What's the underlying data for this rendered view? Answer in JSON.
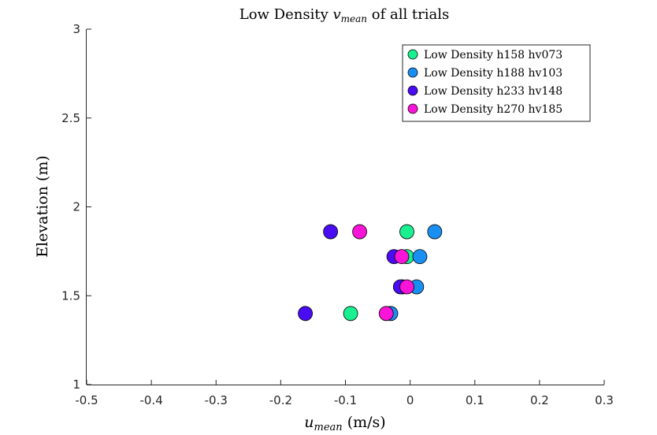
{
  "chart_data": {
    "type": "scatter",
    "title": {
      "prefix": "Low Density ",
      "var_main": "v",
      "var_sub": "mean",
      "suffix": " of all trials"
    },
    "xlabel": {
      "var_main": "u",
      "var_sub": "mean",
      "suffix": " (m/s)"
    },
    "ylabel": "Elevation (m)",
    "xlim": [
      -0.5,
      0.3
    ],
    "ylim": [
      1,
      3
    ],
    "xticks": [
      -0.5,
      -0.4,
      -0.3,
      -0.2,
      -0.1,
      0,
      0.1,
      0.2,
      0.3
    ],
    "xtick_labels": [
      "-0.5",
      "-0.4",
      "-0.3",
      "-0.2",
      "-0.1",
      "0",
      "0.1",
      "0.2",
      "0.3"
    ],
    "yticks": [
      1,
      1.5,
      2,
      2.5,
      3
    ],
    "ytick_labels": [
      "1",
      "1.5",
      "2",
      "2.5",
      "3"
    ],
    "grid": false,
    "legend_position": "top-right",
    "series": [
      {
        "name": "Low Density h158 hv073",
        "color": "#19f08f",
        "points": [
          {
            "x": -0.092,
            "y": 1.4
          },
          {
            "x": -0.012,
            "y": 1.55
          },
          {
            "x": -0.005,
            "y": 1.72
          },
          {
            "x": -0.005,
            "y": 1.86
          }
        ]
      },
      {
        "name": "Low Density h188 hv103",
        "color": "#1a8ff2",
        "points": [
          {
            "x": -0.03,
            "y": 1.4
          },
          {
            "x": 0.01,
            "y": 1.55
          },
          {
            "x": 0.015,
            "y": 1.72
          },
          {
            "x": 0.038,
            "y": 1.86
          }
        ]
      },
      {
        "name": "Low Density h233 hv148",
        "color": "#4a0cf2",
        "points": [
          {
            "x": -0.162,
            "y": 1.4
          },
          {
            "x": -0.015,
            "y": 1.55
          },
          {
            "x": -0.025,
            "y": 1.72
          },
          {
            "x": -0.123,
            "y": 1.86
          }
        ]
      },
      {
        "name": "Low Density h270 hv185",
        "color": "#fa14d8",
        "points": [
          {
            "x": -0.037,
            "y": 1.4
          },
          {
            "x": -0.005,
            "y": 1.55
          },
          {
            "x": -0.013,
            "y": 1.72
          },
          {
            "x": -0.078,
            "y": 1.86
          }
        ]
      }
    ]
  }
}
